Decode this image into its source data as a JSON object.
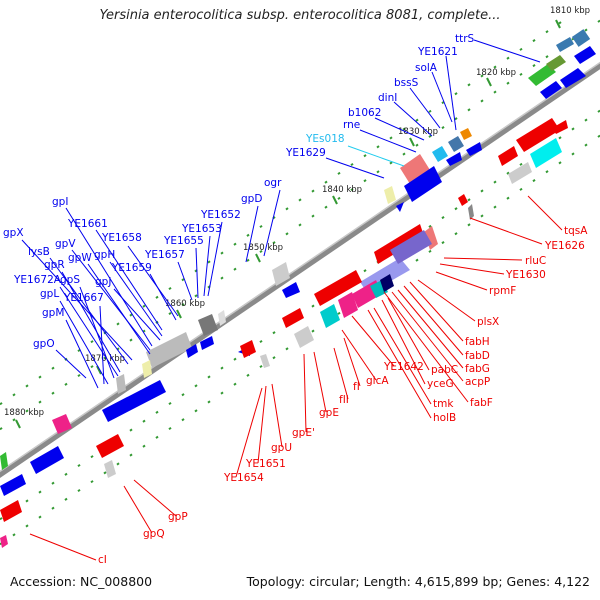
{
  "title": "Yersinia enterocolitica subsp. enterocolitica 8081, complete...",
  "footer": {
    "accession": "Accession: NC_008800",
    "summary": "Topology: circular; Length: 4,615,899 bp; Genes: 4,122"
  },
  "ticks": [
    "1810 kbp",
    "1820 kbp",
    "1830 kbp",
    "1840 kbp",
    "1850 kbp",
    "1860 kbp",
    "1870 kbp",
    "1880 kbp"
  ],
  "forward_labels": [
    "ttrS",
    "YE1621",
    "solA",
    "bssS",
    "dinI",
    "b1062",
    "rne",
    "YEs018",
    "YE1629",
    "ogr",
    "gpD",
    "YE1652",
    "YE1653",
    "YE1655",
    "YE1657",
    "YE1658",
    "YE1659",
    "YE1661",
    "gpH",
    "gpJ",
    "gpI",
    "gpV",
    "gpW",
    "gpX",
    "lysB",
    "gpR",
    "YE1672A",
    "gpS",
    "gpL",
    "YE1667",
    "gpM",
    "gpO"
  ],
  "reverse_labels": [
    "tqsA",
    "YE1626",
    "rluC",
    "YE1630",
    "rpmF",
    "plsX",
    "fabH",
    "fabD",
    "fabG",
    "acpP",
    "fabF",
    "pabC",
    "yceG",
    "tmk",
    "holB",
    "YE1642",
    "glcA",
    "fII",
    "fI",
    "gpE",
    "gpE'",
    "gpU",
    "YE1651",
    "YE1654",
    "gpP",
    "gpQ",
    "cI"
  ],
  "colors": {
    "forward": "#0000ee",
    "reverse": "#ee0000",
    "rna": "#33ccee",
    "backbone": "#888888",
    "tick": "#339933"
  }
}
